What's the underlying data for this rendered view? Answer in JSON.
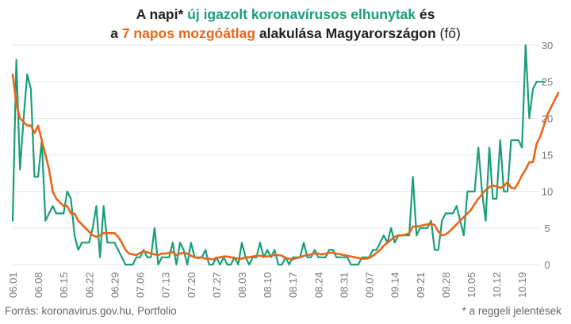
{
  "title": {
    "line1_pre": "A napi* ",
    "line1_green": "új igazolt koronavírusos elhunytak",
    "line1_post": " és",
    "line2_pre": "a ",
    "line2_orange": "7 napos mozgóátlag",
    "line2_mid": " alakulása Magyarországon",
    "line2_unit": " (fő)"
  },
  "source": "Forrás: koronavirus.gov.hu, Portfolio",
  "footnote": "* a reggeli jelentések",
  "colors": {
    "daily": "#1a9e7a",
    "average": "#e8661a",
    "grid": "#e6e6e6",
    "axis_text": "#777777"
  },
  "chart_data": {
    "type": "line",
    "ylim": [
      0,
      30
    ],
    "yticks": [
      0,
      5,
      10,
      15,
      20,
      25,
      30
    ],
    "xticks": [
      "06.01",
      "06.08",
      "06.15",
      "06.22",
      "06.29",
      "07.06",
      "07.13",
      "07.20",
      "07.27",
      "08.03",
      "08.10",
      "08.17",
      "08.24",
      "08.31",
      "09.07",
      "09.14",
      "09.21",
      "09.28",
      "10.05",
      "10.12",
      "10.19"
    ],
    "x_start": "06.01",
    "series": [
      {
        "key": "daily",
        "values": [
          6,
          28,
          13,
          20,
          26,
          24,
          12,
          12,
          17,
          6,
          7,
          8,
          7,
          7,
          7,
          10,
          9,
          4,
          2,
          3,
          3,
          3,
          5,
          8,
          1,
          8,
          3,
          3,
          3,
          2,
          1,
          0,
          0,
          0,
          1,
          1,
          2,
          1,
          1,
          5,
          0,
          1,
          1,
          1,
          3,
          0,
          3,
          2,
          0,
          3,
          1,
          1,
          1,
          2,
          0,
          0,
          1,
          0,
          1,
          0,
          0,
          1,
          0,
          3,
          1,
          0,
          1,
          1,
          3,
          1,
          2,
          1,
          2,
          0,
          0,
          1,
          0,
          1,
          1,
          1,
          3,
          1,
          1,
          2,
          1,
          1,
          1,
          2,
          2,
          1,
          1,
          1,
          1,
          0,
          0,
          0,
          1,
          1,
          1,
          2,
          2,
          3,
          4,
          3,
          5,
          3,
          4,
          4,
          4,
          4,
          12,
          4,
          5,
          5,
          5,
          6,
          2,
          2,
          6,
          7,
          7,
          7,
          8,
          6,
          4,
          10,
          10,
          10,
          16,
          10,
          6,
          16,
          9,
          9,
          17,
          10,
          10,
          17,
          17,
          17,
          16,
          30,
          20,
          24,
          25,
          25,
          25
        ]
      },
      {
        "key": "average",
        "values": [
          26,
          22,
          20,
          19.5,
          19,
          19,
          18,
          19,
          17,
          15,
          13,
          10,
          9,
          8.5,
          8,
          8,
          7,
          7,
          6,
          5.5,
          5,
          4.5,
          4,
          3.8,
          4,
          4.3,
          4.3,
          4.3,
          4.3,
          3.8,
          3,
          2,
          1.5,
          1.4,
          1.3,
          1.6,
          1.8,
          1.7,
          1.5,
          1.4,
          1.3,
          1.5,
          1.5,
          1.6,
          1.7,
          1.3,
          1.5,
          1.6,
          1.5,
          1.2,
          1,
          0.9,
          1,
          0.8,
          0.8,
          0.7,
          0.9,
          1,
          1.1,
          1.1,
          1,
          0.9,
          0.8,
          0.8,
          1,
          1,
          1.1,
          1.2,
          1.2,
          1.1,
          1.1,
          1.2,
          1.3,
          1.3,
          1.2,
          0.9,
          0.8,
          0.7,
          0.9,
          1,
          1.2,
          1.3,
          1.4,
          1.5,
          1.5,
          1.4,
          1.5,
          1.6,
          1.6,
          1.5,
          1.4,
          1.3,
          1.2,
          1.1,
          1,
          0.9,
          0.8,
          0.8,
          0.9,
          1.2,
          1.6,
          2,
          2.6,
          3,
          3.4,
          3.8,
          4,
          4,
          4.1,
          4.3,
          5.2,
          5.2,
          5.3,
          5.4,
          5.5,
          5.6,
          5.4,
          4.5,
          4,
          4.1,
          4.5,
          5,
          5.5,
          6,
          6.5,
          7,
          7.5,
          8.3,
          9,
          9.6,
          10.2,
          10.6,
          10.8,
          10.7,
          10.5,
          10.7,
          11.3,
          10.5,
          10.4,
          11.2,
          12.2,
          13,
          14,
          14,
          16.5,
          17.5,
          19,
          20.5,
          21.5,
          22.5,
          23.5
        ]
      }
    ]
  }
}
